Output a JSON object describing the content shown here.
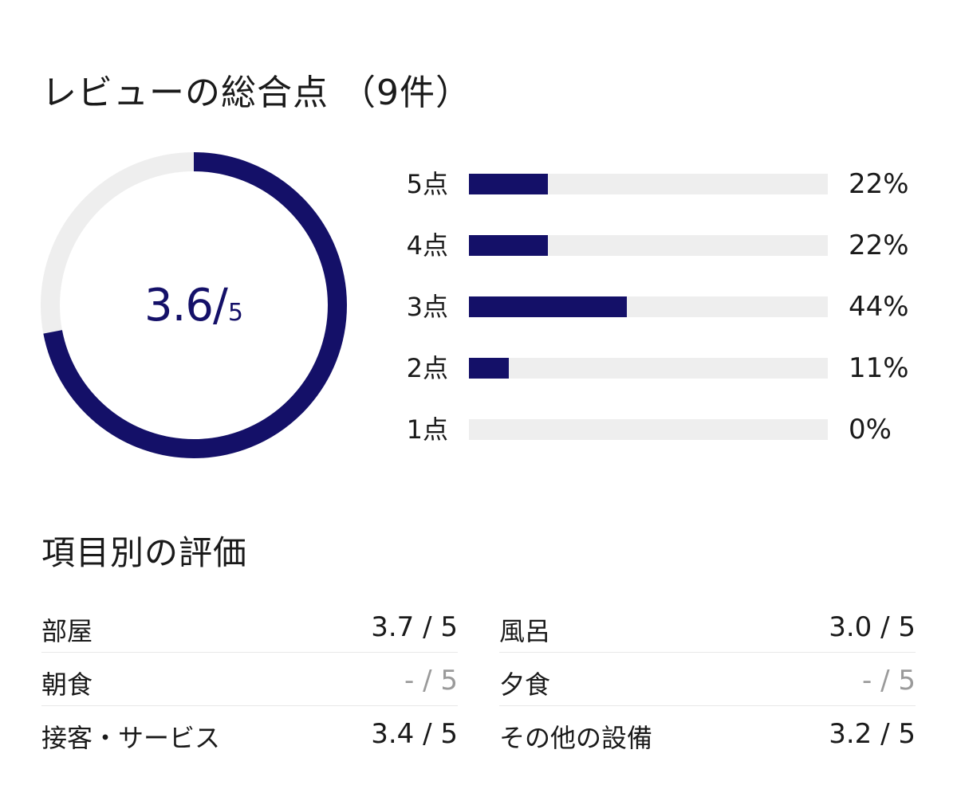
{
  "summary": {
    "title": "レビューの総合点 （9件）",
    "score": "3.6",
    "slash": "/",
    "out_of": "5",
    "score_fraction": 0.72,
    "accent_color": "#141068",
    "track_color": "#eeeeee"
  },
  "distribution": [
    {
      "label": "5点",
      "percent_text": "22%",
      "percent": 22
    },
    {
      "label": "4点",
      "percent_text": "22%",
      "percent": 22
    },
    {
      "label": "3点",
      "percent_text": "44%",
      "percent": 44
    },
    {
      "label": "2点",
      "percent_text": "11%",
      "percent": 11
    },
    {
      "label": "1点",
      "percent_text": "0%",
      "percent": 0
    }
  ],
  "categories": {
    "title": "項目別の評価",
    "left": [
      {
        "name": "部屋",
        "value": "3.7 / 5"
      },
      {
        "name": "朝食",
        "value": "- / 5"
      },
      {
        "name": "接客・サービス",
        "value": "3.4 / 5"
      }
    ],
    "right": [
      {
        "name": "風呂",
        "value": "3.0 / 5"
      },
      {
        "name": "夕食",
        "value": "- / 5"
      },
      {
        "name": "その他の設備",
        "value": "3.2 / 5"
      }
    ]
  }
}
